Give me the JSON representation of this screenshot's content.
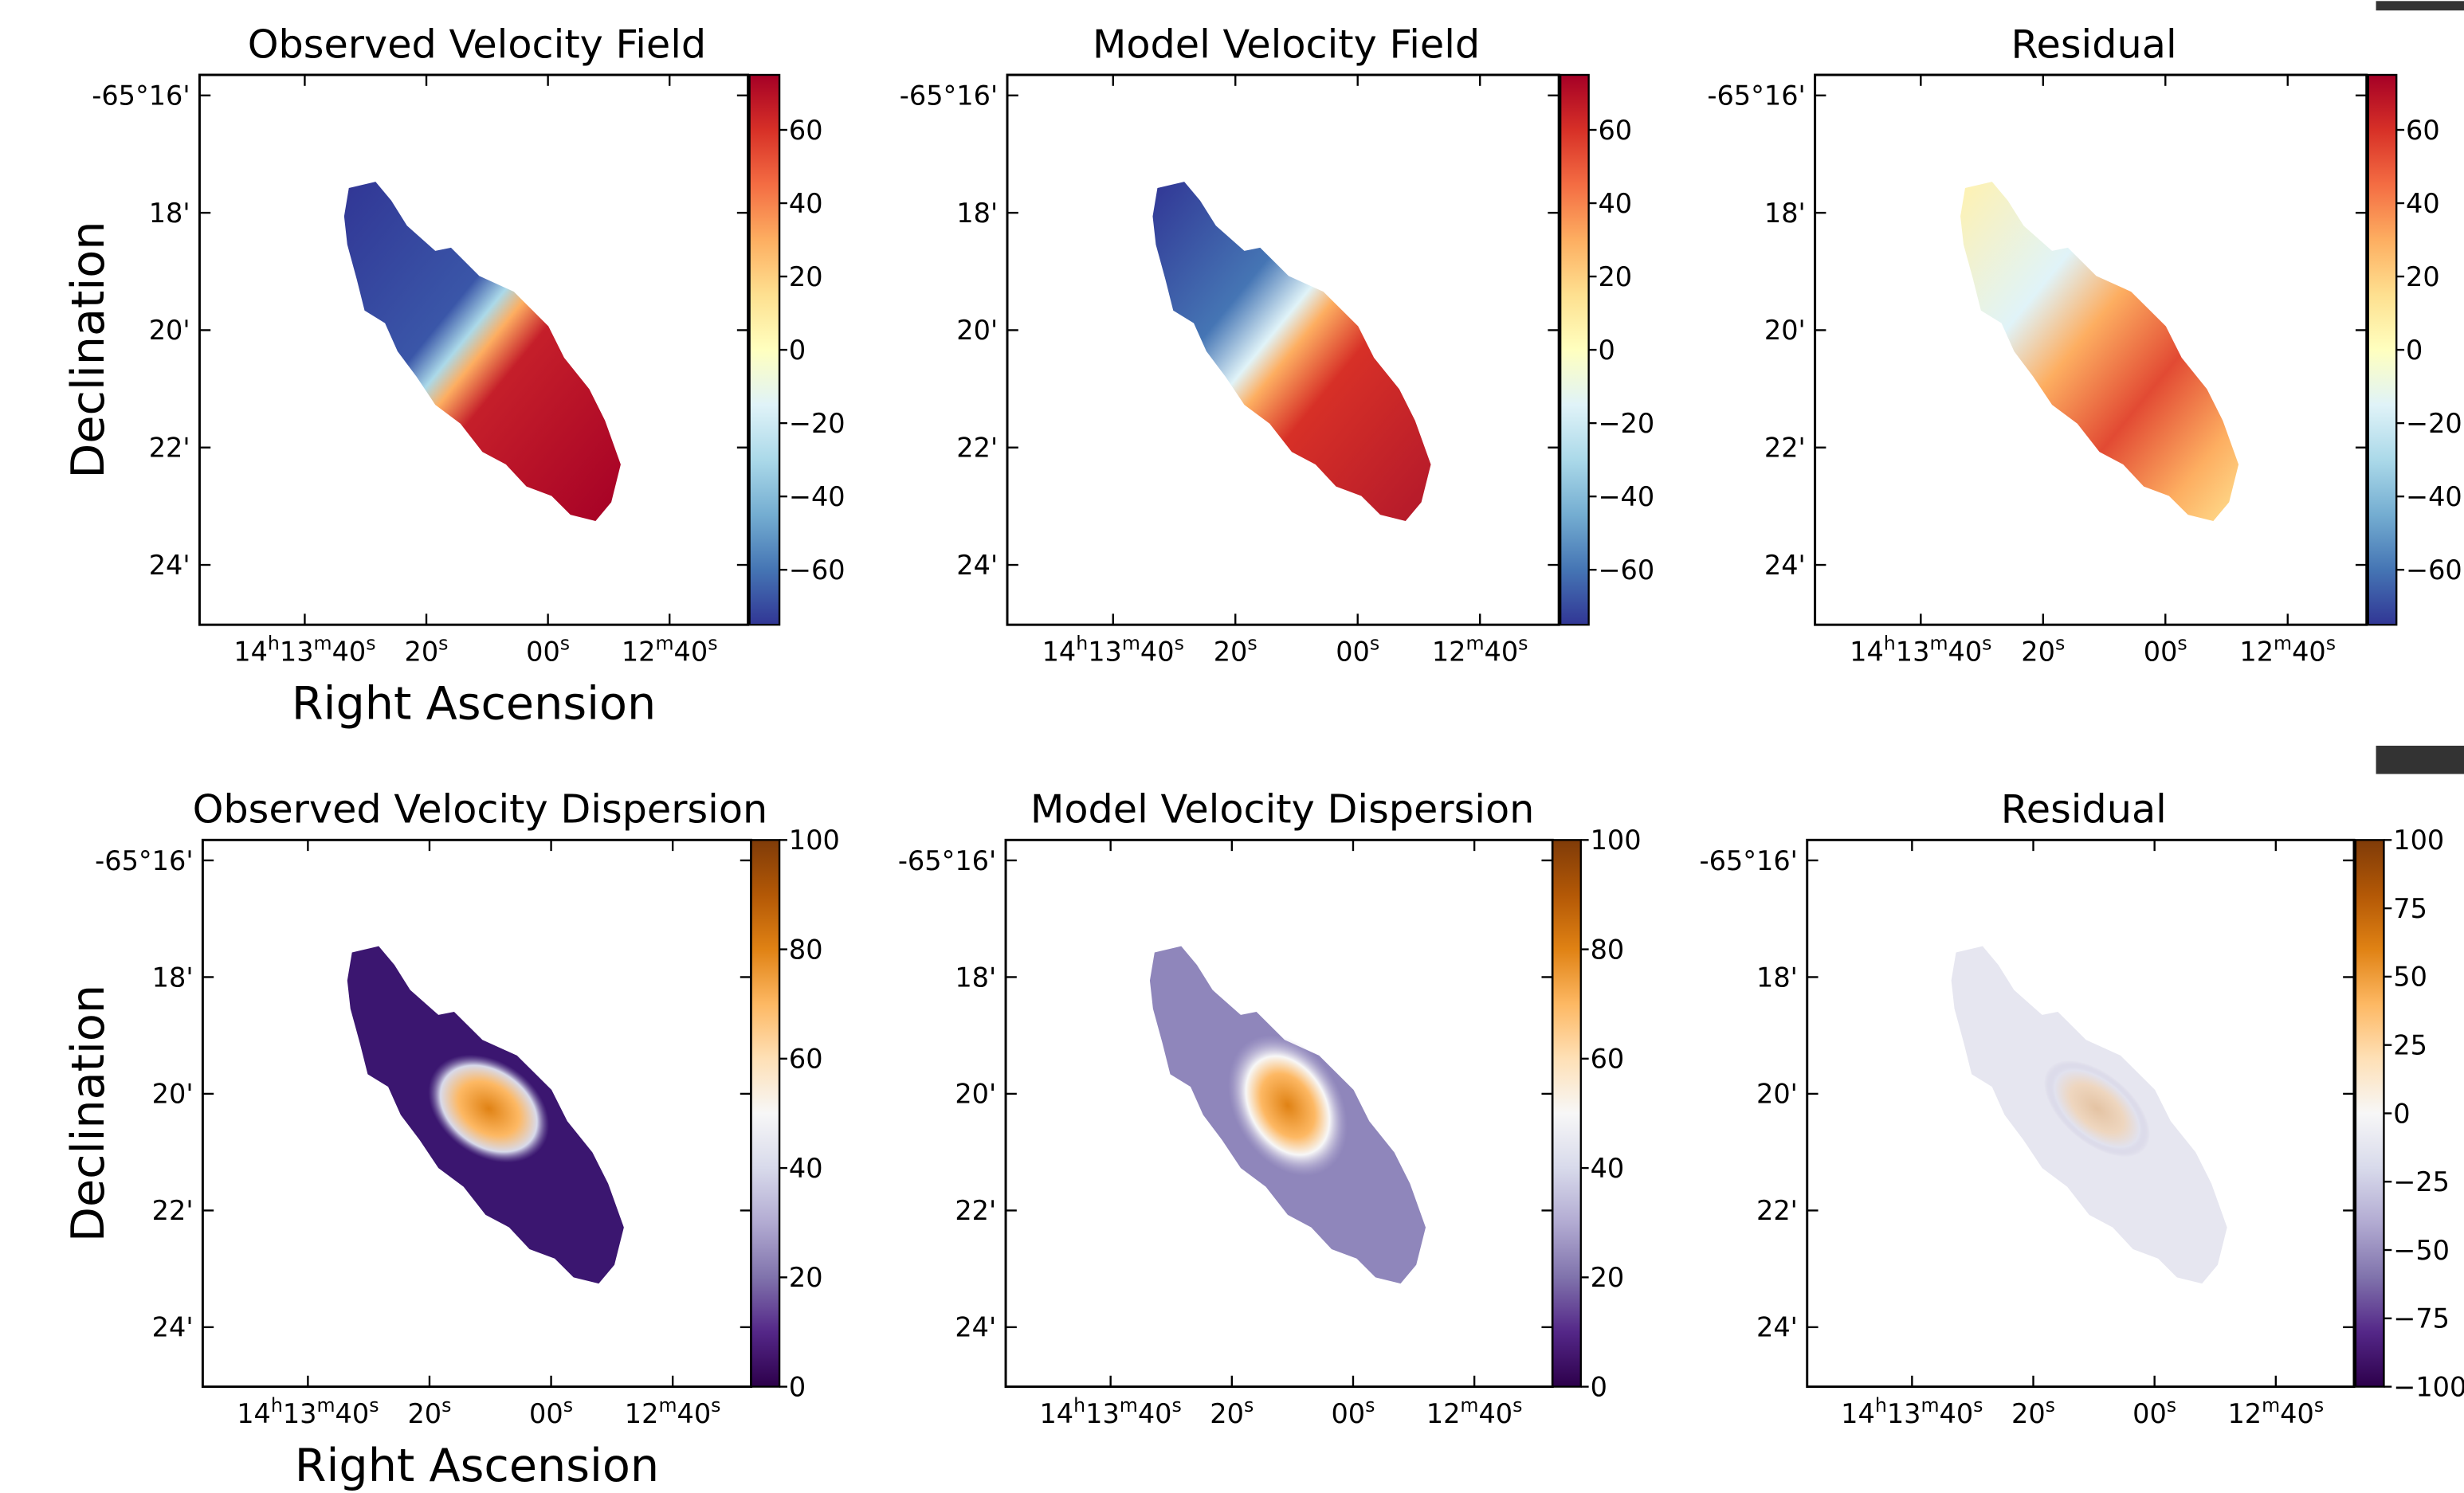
{
  "chart_data": [
    {
      "type": "image",
      "title": "Observed Velocity Field",
      "xlabel": "Right Ascension",
      "ylabel": "Declination",
      "xlim": [
        57.3,
        -32.9
      ],
      "xticks": [
        {
          "value": 40,
          "label": "14h13m40s"
        },
        {
          "value": 20,
          "label": "20s"
        },
        {
          "value": 0,
          "label": "00s"
        },
        {
          "value": -20,
          "label": "12m40s"
        }
      ],
      "ylim": [
        25.02,
        15.65
      ],
      "yticks": [
        {
          "value": 16,
          "label": "-65°16'"
        },
        {
          "value": 18,
          "label": "18'"
        },
        {
          "value": 20,
          "label": "20'"
        },
        {
          "value": 22,
          "label": "22'"
        },
        {
          "value": 24,
          "label": "24'"
        }
      ],
      "colormap": "RdYlBu_r",
      "clim": [
        -75,
        75
      ],
      "cticks": [
        {
          "value": -60,
          "label": "−60"
        },
        {
          "value": -40,
          "label": "−40"
        },
        {
          "value": -20,
          "label": "−20"
        },
        0,
        20,
        40,
        60
      ]
    },
    {
      "type": "image",
      "title": "Model Velocity Field",
      "xlim": [
        57.3,
        -32.9
      ],
      "xticks": [
        {
          "value": 40,
          "label": "14h13m40s"
        },
        {
          "value": 20,
          "label": "20s"
        },
        {
          "value": 0,
          "label": "00s"
        },
        {
          "value": -20,
          "label": "12m40s"
        }
      ],
      "ylim": [
        25.02,
        15.65
      ],
      "yticks": [
        {
          "value": 16,
          "label": "-65°16'"
        },
        {
          "value": 18,
          "label": "18'"
        },
        {
          "value": 20,
          "label": "20'"
        },
        {
          "value": 22,
          "label": "22'"
        },
        {
          "value": 24,
          "label": "24'"
        }
      ],
      "colormap": "RdYlBu_r",
      "clim": [
        -75,
        75
      ],
      "cticks": [
        {
          "value": -60,
          "label": "−60"
        },
        {
          "value": -40,
          "label": "−40"
        },
        {
          "value": -20,
          "label": "−20"
        },
        0,
        20,
        40,
        60
      ]
    },
    {
      "type": "image",
      "title": "Residual",
      "xlim": [
        57.3,
        -32.9
      ],
      "xticks": [
        {
          "value": 40,
          "label": "14h13m40s"
        },
        {
          "value": 20,
          "label": "20s"
        },
        {
          "value": 0,
          "label": "00s"
        },
        {
          "value": -20,
          "label": "12m40s"
        }
      ],
      "ylim": [
        25.02,
        15.65
      ],
      "yticks": [
        {
          "value": 16,
          "label": "-65°16'"
        },
        {
          "value": 18,
          "label": "18'"
        },
        {
          "value": 20,
          "label": "20'"
        },
        {
          "value": 22,
          "label": "22'"
        },
        {
          "value": 24,
          "label": "24'"
        }
      ],
      "colormap": "RdYlBu_r",
      "clim": [
        -75,
        75
      ],
      "cticks": [
        {
          "value": -60,
          "label": "−60"
        },
        {
          "value": -40,
          "label": "−40"
        },
        {
          "value": -20,
          "label": "−20"
        },
        0,
        20,
        40,
        60
      ]
    },
    {
      "type": "image",
      "title": "Observed Velocity Dispersion",
      "xlabel": "Right Ascension",
      "ylabel": "Declination",
      "xlim": [
        57.3,
        -32.9
      ],
      "xticks": [
        {
          "value": 40,
          "label": "14h13m40s"
        },
        {
          "value": 20,
          "label": "20s"
        },
        {
          "value": 0,
          "label": "00s"
        },
        {
          "value": -20,
          "label": "12m40s"
        }
      ],
      "ylim": [
        25.02,
        15.65
      ],
      "yticks": [
        {
          "value": 16,
          "label": "-65°16'"
        },
        {
          "value": 18,
          "label": "18'"
        },
        {
          "value": 20,
          "label": "20'"
        },
        {
          "value": 22,
          "label": "22'"
        },
        {
          "value": 24,
          "label": "24'"
        }
      ],
      "colormap": "PuOr_r",
      "clim": [
        0,
        100
      ],
      "cticks": [
        0,
        20,
        40,
        60,
        80,
        100
      ]
    },
    {
      "type": "image",
      "title": "Model Velocity Dispersion",
      "xlim": [
        57.3,
        -32.9
      ],
      "xticks": [
        {
          "value": 40,
          "label": "14h13m40s"
        },
        {
          "value": 20,
          "label": "20s"
        },
        {
          "value": 0,
          "label": "00s"
        },
        {
          "value": -20,
          "label": "12m40s"
        }
      ],
      "ylim": [
        25.02,
        15.65
      ],
      "yticks": [
        {
          "value": 16,
          "label": "-65°16'"
        },
        {
          "value": 18,
          "label": "18'"
        },
        {
          "value": 20,
          "label": "20'"
        },
        {
          "value": 22,
          "label": "22'"
        },
        {
          "value": 24,
          "label": "24'"
        }
      ],
      "colormap": "PuOr_r",
      "clim": [
        0,
        100
      ],
      "cticks": [
        0,
        20,
        40,
        60,
        80,
        100
      ]
    },
    {
      "type": "image",
      "title": "Residual",
      "xlim": [
        57.3,
        -32.9
      ],
      "xticks": [
        {
          "value": 40,
          "label": "14h13m40s"
        },
        {
          "value": 20,
          "label": "20s"
        },
        {
          "value": 0,
          "label": "00s"
        },
        {
          "value": -20,
          "label": "12m40s"
        }
      ],
      "ylim": [
        25.02,
        15.65
      ],
      "yticks": [
        {
          "value": 16,
          "label": "-65°16'"
        },
        {
          "value": 18,
          "label": "18'"
        },
        {
          "value": 20,
          "label": "20'"
        },
        {
          "value": 22,
          "label": "22'"
        },
        {
          "value": 24,
          "label": "24'"
        }
      ],
      "colormap": "PuOr_r",
      "clim": [
        -100,
        100
      ],
      "cticks": [
        {
          "value": -100,
          "label": "−100"
        },
        {
          "value": -75,
          "label": "−75"
        },
        {
          "value": -50,
          "label": "−50"
        },
        {
          "value": -25,
          "label": "−25"
        },
        0,
        25,
        50,
        75,
        100
      ]
    }
  ]
}
